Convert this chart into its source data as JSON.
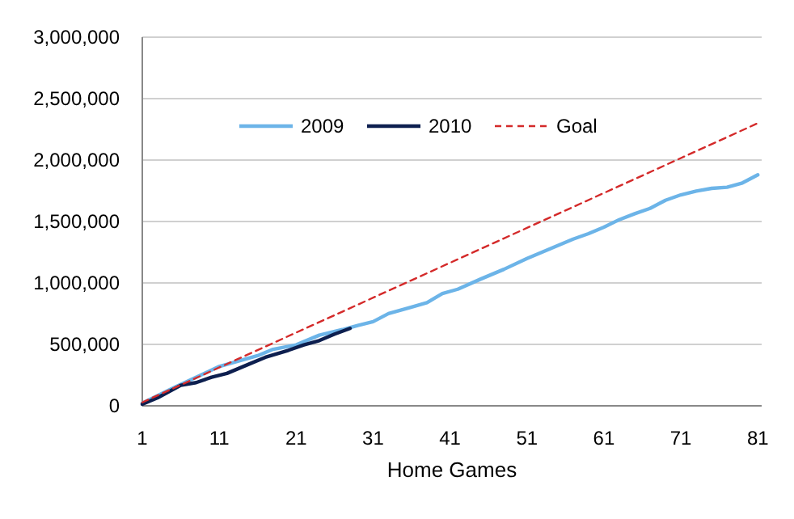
{
  "chart_data": {
    "type": "line",
    "xlabel": "Home Games",
    "xlim": [
      1,
      81.5
    ],
    "xticks": [
      1,
      11,
      21,
      31,
      41,
      51,
      61,
      71,
      81
    ],
    "ylim": [
      0,
      3000000
    ],
    "yticks": [
      {
        "value": 0,
        "label": "0"
      },
      {
        "value": 500000,
        "label": "500,000"
      },
      {
        "value": 1000000,
        "label": "1,000,000"
      },
      {
        "value": 1500000,
        "label": "1,500,000"
      },
      {
        "value": 2000000,
        "label": "2,000,000"
      },
      {
        "value": 2500000,
        "label": "2,500,000"
      },
      {
        "value": 3000000,
        "label": "3,000,000"
      }
    ],
    "grid": "y",
    "legend": "top",
    "marker": "none",
    "series": [
      {
        "name": "2009",
        "color": "#6cb4e8",
        "line_style": "solid",
        "x": [
          1,
          5,
          11,
          16,
          18,
          21,
          24,
          27,
          29,
          31,
          33,
          36,
          38,
          40,
          42,
          45,
          48,
          51,
          54,
          57,
          59,
          61,
          63,
          65,
          67,
          69,
          71,
          73,
          75,
          77,
          79,
          81
        ],
        "values": [
          22000,
          145000,
          320000,
          408000,
          460000,
          496000,
          575000,
          620000,
          654000,
          685000,
          751000,
          804000,
          839000,
          914000,
          949000,
          1032000,
          1111000,
          1199000,
          1278000,
          1357000,
          1401000,
          1454000,
          1515000,
          1563000,
          1607000,
          1673000,
          1717000,
          1748000,
          1770000,
          1779000,
          1814000,
          1880000
        ]
      },
      {
        "name": "2010",
        "color": "#0d1f4f",
        "line_style": "solid",
        "x": [
          1,
          3,
          6,
          8,
          10,
          12,
          15,
          17,
          20,
          22,
          24,
          26,
          28
        ],
        "values": [
          13000,
          66000,
          167000,
          189000,
          233000,
          264000,
          343000,
          395000,
          452000,
          496000,
          531000,
          584000,
          630000
        ]
      },
      {
        "name": "Goal",
        "color": "#d42a2a",
        "line_style": "dashed",
        "x": [
          1,
          81
        ],
        "values": [
          28000,
          2300000
        ]
      }
    ]
  }
}
